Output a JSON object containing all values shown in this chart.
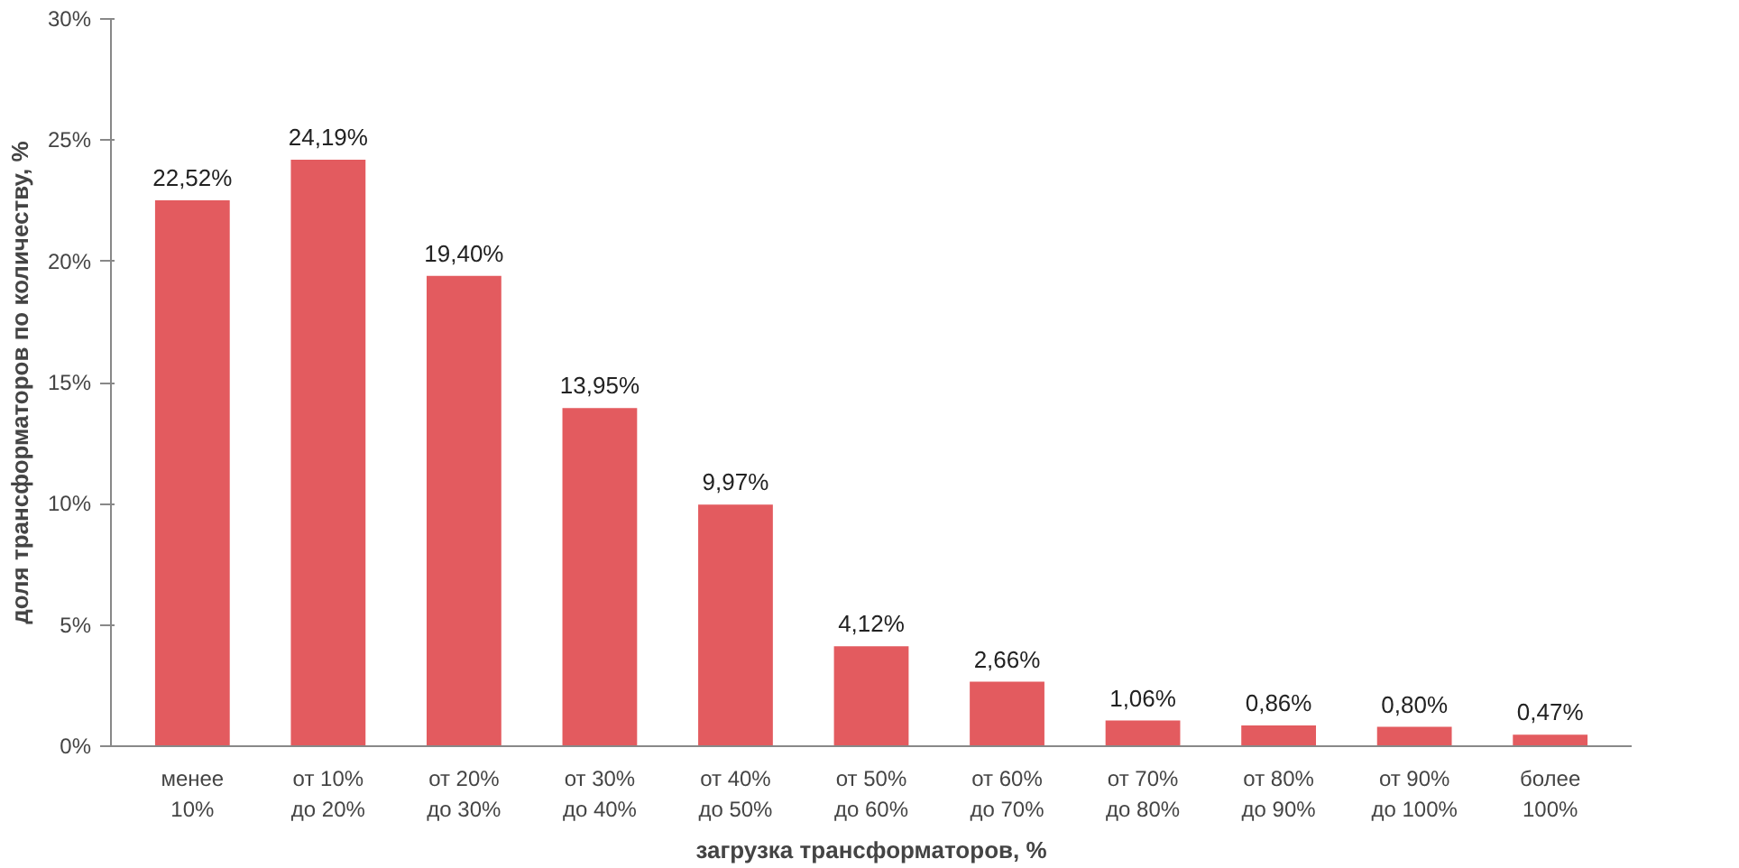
{
  "chart_data": {
    "type": "bar",
    "xlabel": "загрузка трансформаторов, %",
    "ylabel": "доля трансформаторов по количеству, %",
    "categories": [
      "менее\n10%",
      "от 10%\nдо 20%",
      "от 20%\nдо 30%",
      "от 30%\nдо 40%",
      "от 40%\nдо 50%",
      "от 50%\nдо 60%",
      "от 60%\nдо 70%",
      "от 70%\nдо 80%",
      "от 80%\nдо 90%",
      "от 90%\nдо 100%",
      "более\n100%"
    ],
    "values": [
      22.52,
      24.19,
      19.4,
      13.95,
      9.97,
      4.12,
      2.66,
      1.06,
      0.86,
      0.8,
      0.47
    ],
    "value_labels": [
      "22,52%",
      "24,19%",
      "19,40%",
      "13,95%",
      "9,97%",
      "4,12%",
      "2,66%",
      "1,06%",
      "0,86%",
      "0,80%",
      "0,47%"
    ],
    "color": "#e35b5f",
    "ylim": [
      0,
      30
    ],
    "yticks": [
      {
        "value": 0,
        "label": "0%"
      },
      {
        "value": 5,
        "label": "5%"
      },
      {
        "value": 10,
        "label": "10%"
      },
      {
        "value": 15,
        "label": "15%"
      },
      {
        "value": 20,
        "label": "20%"
      },
      {
        "value": 25,
        "label": "25%"
      },
      {
        "value": 30,
        "label": "30%"
      }
    ],
    "grid": false
  }
}
